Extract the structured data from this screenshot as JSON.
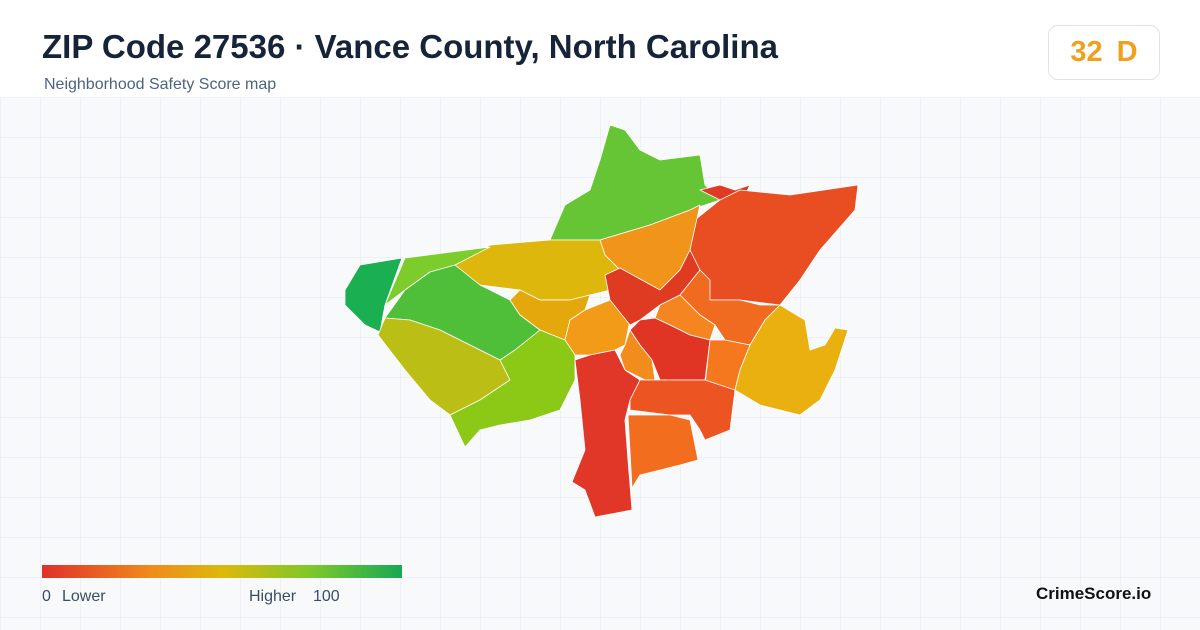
{
  "header": {
    "title": "ZIP Code 27536 · Vance County, North Carolina",
    "subtitle": "Neighborhood Safety Score map"
  },
  "score": {
    "value": 32,
    "grade": "D"
  },
  "legend": {
    "min": 0,
    "min_label": "Lower",
    "max_label": "Higher",
    "max": 100
  },
  "brand": "CrimeScore.io"
}
